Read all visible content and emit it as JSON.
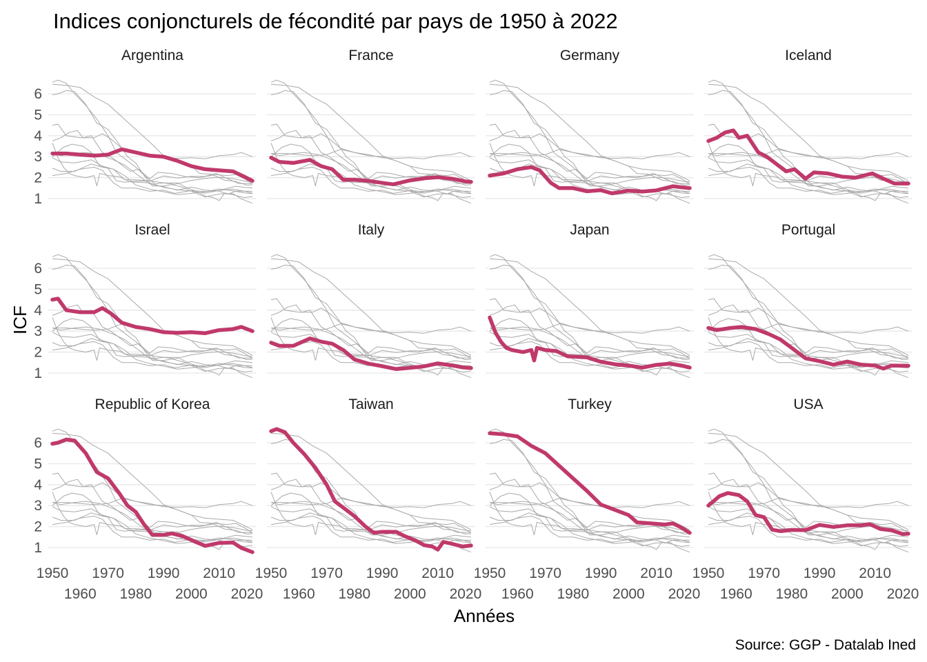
{
  "chart_data": {
    "type": "line",
    "title": "Indices conjoncturels de fécondité par pays de 1950 à 2022",
    "xlabel": "Années",
    "ylabel": "ICF",
    "caption": "Source: GGP - Datalab Ined",
    "xlim": [
      1950,
      2022
    ],
    "ylim": [
      1,
      6.6
    ],
    "x_ticks_upper": [
      "1950",
      "1970",
      "1990",
      "2010"
    ],
    "x_ticks_lower": [
      "1960",
      "1980",
      "2000",
      "2020"
    ],
    "y_ticks": [
      "1",
      "2",
      "3",
      "4",
      "5",
      "6"
    ],
    "grid": true,
    "highlight_color": "#c0396b",
    "background_color": "#a9a9a9",
    "series": [
      {
        "name": "Argentina",
        "points": [
          [
            1950,
            3.15
          ],
          [
            1955,
            3.15
          ],
          [
            1960,
            3.1
          ],
          [
            1965,
            3.05
          ],
          [
            1970,
            3.1
          ],
          [
            1975,
            3.35
          ],
          [
            1980,
            3.2
          ],
          [
            1985,
            3.05
          ],
          [
            1990,
            3.0
          ],
          [
            1995,
            2.8
          ],
          [
            2000,
            2.55
          ],
          [
            2005,
            2.4
          ],
          [
            2010,
            2.35
          ],
          [
            2015,
            2.3
          ],
          [
            2019,
            2.05
          ],
          [
            2022,
            1.85
          ]
        ]
      },
      {
        "name": "France",
        "points": [
          [
            1950,
            2.95
          ],
          [
            1953,
            2.75
          ],
          [
            1958,
            2.7
          ],
          [
            1964,
            2.85
          ],
          [
            1968,
            2.55
          ],
          [
            1972,
            2.4
          ],
          [
            1976,
            1.9
          ],
          [
            1980,
            1.9
          ],
          [
            1985,
            1.85
          ],
          [
            1990,
            1.75
          ],
          [
            1994,
            1.68
          ],
          [
            2000,
            1.87
          ],
          [
            2006,
            1.98
          ],
          [
            2010,
            2.02
          ],
          [
            2015,
            1.95
          ],
          [
            2020,
            1.82
          ],
          [
            2022,
            1.8
          ]
        ]
      },
      {
        "name": "Germany",
        "points": [
          [
            1950,
            2.1
          ],
          [
            1955,
            2.2
          ],
          [
            1960,
            2.4
          ],
          [
            1965,
            2.5
          ],
          [
            1968,
            2.35
          ],
          [
            1972,
            1.75
          ],
          [
            1975,
            1.5
          ],
          [
            1980,
            1.5
          ],
          [
            1985,
            1.35
          ],
          [
            1990,
            1.4
          ],
          [
            1994,
            1.25
          ],
          [
            2000,
            1.38
          ],
          [
            2005,
            1.34
          ],
          [
            2010,
            1.39
          ],
          [
            2016,
            1.59
          ],
          [
            2019,
            1.54
          ],
          [
            2022,
            1.5
          ]
        ]
      },
      {
        "name": "Iceland",
        "points": [
          [
            1950,
            3.75
          ],
          [
            1953,
            3.9
          ],
          [
            1956,
            4.15
          ],
          [
            1959,
            4.25
          ],
          [
            1961,
            3.9
          ],
          [
            1964,
            4.0
          ],
          [
            1968,
            3.2
          ],
          [
            1971,
            3.0
          ],
          [
            1974,
            2.7
          ],
          [
            1976,
            2.5
          ],
          [
            1978,
            2.3
          ],
          [
            1981,
            2.4
          ],
          [
            1985,
            1.95
          ],
          [
            1988,
            2.25
          ],
          [
            1993,
            2.2
          ],
          [
            1998,
            2.05
          ],
          [
            2003,
            2.0
          ],
          [
            2009,
            2.2
          ],
          [
            2013,
            1.95
          ],
          [
            2017,
            1.72
          ],
          [
            2022,
            1.72
          ]
        ]
      },
      {
        "name": "Israel",
        "points": [
          [
            1950,
            4.5
          ],
          [
            1952,
            4.55
          ],
          [
            1955,
            4.0
          ],
          [
            1960,
            3.9
          ],
          [
            1965,
            3.9
          ],
          [
            1968,
            4.1
          ],
          [
            1971,
            3.85
          ],
          [
            1975,
            3.4
          ],
          [
            1980,
            3.2
          ],
          [
            1985,
            3.1
          ],
          [
            1990,
            2.95
          ],
          [
            1995,
            2.92
          ],
          [
            2000,
            2.95
          ],
          [
            2005,
            2.9
          ],
          [
            2010,
            3.05
          ],
          [
            2015,
            3.1
          ],
          [
            2018,
            3.2
          ],
          [
            2022,
            3.0
          ]
        ]
      },
      {
        "name": "Italy",
        "points": [
          [
            1950,
            2.45
          ],
          [
            1953,
            2.3
          ],
          [
            1958,
            2.3
          ],
          [
            1964,
            2.65
          ],
          [
            1968,
            2.5
          ],
          [
            1972,
            2.4
          ],
          [
            1976,
            2.1
          ],
          [
            1980,
            1.65
          ],
          [
            1985,
            1.45
          ],
          [
            1990,
            1.33
          ],
          [
            1995,
            1.19
          ],
          [
            2000,
            1.25
          ],
          [
            2005,
            1.32
          ],
          [
            2010,
            1.46
          ],
          [
            2015,
            1.37
          ],
          [
            2019,
            1.27
          ],
          [
            2022,
            1.24
          ]
        ]
      },
      {
        "name": "Japan",
        "points": [
          [
            1950,
            3.65
          ],
          [
            1952,
            2.95
          ],
          [
            1954,
            2.5
          ],
          [
            1956,
            2.2
          ],
          [
            1958,
            2.1
          ],
          [
            1962,
            2.0
          ],
          [
            1965,
            2.1
          ],
          [
            1966,
            1.6
          ],
          [
            1967,
            2.2
          ],
          [
            1970,
            2.1
          ],
          [
            1974,
            2.05
          ],
          [
            1978,
            1.8
          ],
          [
            1985,
            1.75
          ],
          [
            1990,
            1.54
          ],
          [
            1995,
            1.42
          ],
          [
            2000,
            1.36
          ],
          [
            2005,
            1.26
          ],
          [
            2010,
            1.39
          ],
          [
            2015,
            1.45
          ],
          [
            2019,
            1.36
          ],
          [
            2022,
            1.26
          ]
        ]
      },
      {
        "name": "Portugal",
        "points": [
          [
            1950,
            3.15
          ],
          [
            1953,
            3.05
          ],
          [
            1958,
            3.15
          ],
          [
            1962,
            3.2
          ],
          [
            1967,
            3.1
          ],
          [
            1972,
            2.85
          ],
          [
            1976,
            2.6
          ],
          [
            1980,
            2.2
          ],
          [
            1985,
            1.7
          ],
          [
            1990,
            1.57
          ],
          [
            1995,
            1.4
          ],
          [
            2000,
            1.55
          ],
          [
            2005,
            1.4
          ],
          [
            2010,
            1.36
          ],
          [
            2013,
            1.21
          ],
          [
            2016,
            1.36
          ],
          [
            2022,
            1.35
          ]
        ]
      },
      {
        "name": "Republic of Korea",
        "points": [
          [
            1950,
            5.95
          ],
          [
            1952,
            6.0
          ],
          [
            1955,
            6.15
          ],
          [
            1958,
            6.1
          ],
          [
            1962,
            5.5
          ],
          [
            1966,
            4.6
          ],
          [
            1970,
            4.3
          ],
          [
            1974,
            3.6
          ],
          [
            1977,
            3.0
          ],
          [
            1980,
            2.7
          ],
          [
            1983,
            2.1
          ],
          [
            1986,
            1.6
          ],
          [
            1990,
            1.6
          ],
          [
            1993,
            1.67
          ],
          [
            1997,
            1.54
          ],
          [
            2001,
            1.3
          ],
          [
            2005,
            1.08
          ],
          [
            2010,
            1.22
          ],
          [
            2015,
            1.24
          ],
          [
            2018,
            0.98
          ],
          [
            2022,
            0.78
          ]
        ]
      },
      {
        "name": "Taiwan",
        "points": [
          [
            1950,
            6.55
          ],
          [
            1952,
            6.65
          ],
          [
            1955,
            6.5
          ],
          [
            1958,
            6.0
          ],
          [
            1962,
            5.45
          ],
          [
            1966,
            4.8
          ],
          [
            1970,
            4.0
          ],
          [
            1973,
            3.2
          ],
          [
            1976,
            2.9
          ],
          [
            1980,
            2.5
          ],
          [
            1984,
            2.0
          ],
          [
            1987,
            1.7
          ],
          [
            1990,
            1.75
          ],
          [
            1995,
            1.75
          ],
          [
            1998,
            1.55
          ],
          [
            2002,
            1.34
          ],
          [
            2005,
            1.12
          ],
          [
            2008,
            1.05
          ],
          [
            2010,
            0.9
          ],
          [
            2012,
            1.27
          ],
          [
            2015,
            1.18
          ],
          [
            2019,
            1.05
          ],
          [
            2022,
            1.1
          ]
        ]
      },
      {
        "name": "Turkey",
        "points": [
          [
            1950,
            6.45
          ],
          [
            1955,
            6.4
          ],
          [
            1960,
            6.3
          ],
          [
            1965,
            5.85
          ],
          [
            1970,
            5.5
          ],
          [
            1975,
            4.9
          ],
          [
            1980,
            4.3
          ],
          [
            1985,
            3.7
          ],
          [
            1990,
            3.05
          ],
          [
            1995,
            2.8
          ],
          [
            2000,
            2.55
          ],
          [
            2003,
            2.2
          ],
          [
            2008,
            2.15
          ],
          [
            2013,
            2.1
          ],
          [
            2016,
            2.15
          ],
          [
            2019,
            1.95
          ],
          [
            2022,
            1.7
          ]
        ]
      },
      {
        "name": "USA",
        "points": [
          [
            1950,
            3.0
          ],
          [
            1954,
            3.45
          ],
          [
            1957,
            3.6
          ],
          [
            1961,
            3.5
          ],
          [
            1964,
            3.2
          ],
          [
            1967,
            2.55
          ],
          [
            1970,
            2.45
          ],
          [
            1973,
            1.85
          ],
          [
            1976,
            1.78
          ],
          [
            1980,
            1.84
          ],
          [
            1985,
            1.83
          ],
          [
            1990,
            2.08
          ],
          [
            1995,
            1.98
          ],
          [
            2000,
            2.06
          ],
          [
            2005,
            2.06
          ],
          [
            2008,
            2.12
          ],
          [
            2012,
            1.88
          ],
          [
            2016,
            1.82
          ],
          [
            2020,
            1.64
          ],
          [
            2022,
            1.66
          ]
        ]
      }
    ]
  }
}
